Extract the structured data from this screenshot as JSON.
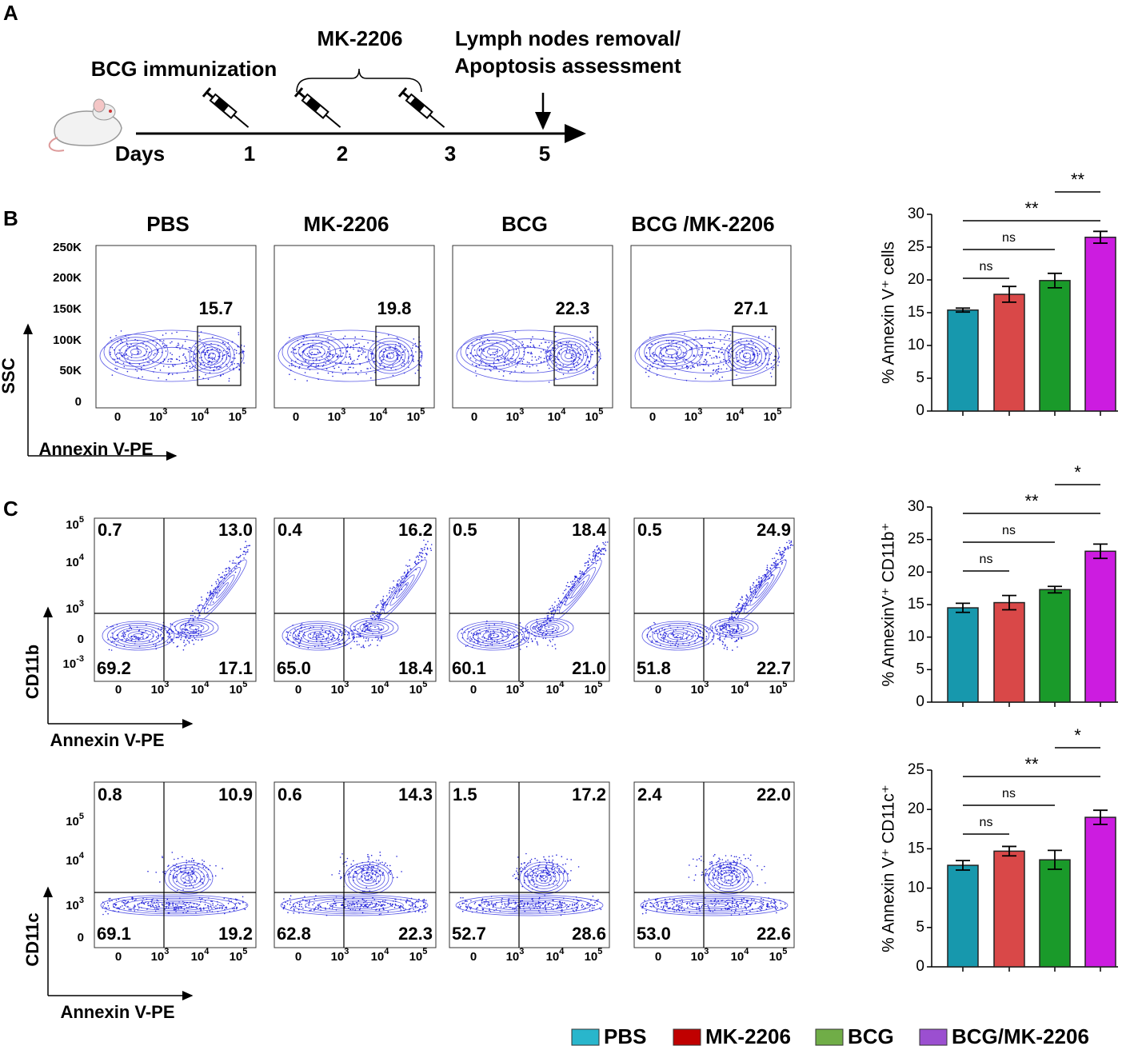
{
  "panel_labels": [
    "A",
    "B",
    "C"
  ],
  "timeline": {
    "immunization": "BCG immunization",
    "treatment": "MK-2206",
    "endpoint": [
      "Lymph nodes removal/",
      "Apoptosis assessment"
    ],
    "days_label": "Days",
    "days": [
      1,
      2,
      3,
      5
    ]
  },
  "groups": [
    "PBS",
    "MK-2206",
    "BCG",
    "BCG /MK-2206"
  ],
  "flow_b": {
    "y_label": "SSC",
    "x_label": "Annexin V-PE",
    "y_ticks": [
      "250K",
      "200K",
      "150K",
      "100K",
      "50K",
      "0"
    ],
    "x_ticks": [
      {
        "base": "0"
      },
      {
        "base": "10",
        "exp": "3"
      },
      {
        "base": "10",
        "exp": "4"
      },
      {
        "base": "10",
        "exp": "5"
      }
    ],
    "gate_values": [
      15.7,
      19.8,
      22.3,
      27.1
    ]
  },
  "flow_c": [
    {
      "y_label": "CD11b",
      "x_label": "Annexin V-PE",
      "y_ticks": [
        {
          "base": "10",
          "exp": "5"
        },
        {
          "base": "10",
          "exp": "4"
        },
        {
          "base": "10",
          "exp": "3"
        },
        {
          "base": "0"
        },
        {
          "base": "10",
          "exp": "-3"
        }
      ],
      "x_ticks": [
        {
          "base": "0"
        },
        {
          "base": "10",
          "exp": "3"
        },
        {
          "base": "10",
          "exp": "4"
        },
        {
          "base": "10",
          "exp": "5"
        }
      ],
      "quadrants": [
        [
          "0.7",
          "13.0",
          "69.2",
          "17.1"
        ],
        [
          "0.4",
          "16.2",
          "65.0",
          "18.4"
        ],
        [
          "0.5",
          "18.4",
          "60.1",
          "21.0"
        ],
        [
          "0.5",
          "24.9",
          "51.8",
          "22.7"
        ]
      ]
    },
    {
      "y_label": "CD11c",
      "x_label": "Annexin V-PE",
      "y_ticks": [
        {
          "base": "10",
          "exp": "5"
        },
        {
          "base": "10",
          "exp": "4"
        },
        {
          "base": "10",
          "exp": "3"
        },
        {
          "base": "0"
        }
      ],
      "x_ticks": [
        {
          "base": "0"
        },
        {
          "base": "10",
          "exp": "3"
        },
        {
          "base": "10",
          "exp": "4"
        },
        {
          "base": "10",
          "exp": "5"
        }
      ],
      "quadrants": [
        [
          "0.8",
          "10.9",
          "69.1",
          "19.2"
        ],
        [
          "0.6",
          "14.3",
          "62.8",
          "22.3"
        ],
        [
          "1.5",
          "17.2",
          "52.7",
          "28.6"
        ],
        [
          "2.4",
          "22.0",
          "53.0",
          "22.6"
        ]
      ]
    }
  ],
  "chart_data": [
    {
      "type": "bar",
      "y_label": "% Annexin V⁺ cells",
      "values": [
        15.4,
        17.8,
        19.9,
        26.5
      ],
      "errors": [
        0.3,
        1.2,
        1.1,
        0.9
      ],
      "colors": [
        "#1798ad",
        "#d94848",
        "#1a9a2a",
        "#cc1ce0"
      ],
      "ylim": [
        0,
        30
      ],
      "yticks": [
        0,
        5,
        10,
        15,
        20,
        25,
        30
      ],
      "annotations": [
        {
          "pair": [
            0,
            1
          ],
          "label": "ns"
        },
        {
          "pair": [
            0,
            2
          ],
          "label": "ns"
        },
        {
          "pair": [
            0,
            3
          ],
          "label": "**"
        },
        {
          "pair": [
            2,
            3
          ],
          "label": "**"
        }
      ]
    },
    {
      "type": "bar",
      "y_label": "% AnnexinV⁺ CD11b⁺",
      "values": [
        14.5,
        15.3,
        17.3,
        23.2
      ],
      "errors": [
        0.7,
        1.1,
        0.5,
        1.1
      ],
      "colors": [
        "#1798ad",
        "#d94848",
        "#1a9a2a",
        "#cc1ce0"
      ],
      "ylim": [
        0,
        30
      ],
      "yticks": [
        0,
        5,
        10,
        15,
        20,
        25,
        30
      ],
      "annotations": [
        {
          "pair": [
            0,
            1
          ],
          "label": "ns"
        },
        {
          "pair": [
            0,
            2
          ],
          "label": "ns"
        },
        {
          "pair": [
            0,
            3
          ],
          "label": "**"
        },
        {
          "pair": [
            2,
            3
          ],
          "label": "*"
        }
      ]
    },
    {
      "type": "bar",
      "y_label": "% Annexin V⁺ CD11c⁺",
      "values": [
        12.9,
        14.7,
        13.6,
        19.0
      ],
      "errors": [
        0.6,
        0.6,
        1.2,
        0.9
      ],
      "colors": [
        "#1798ad",
        "#d94848",
        "#1a9a2a",
        "#cc1ce0"
      ],
      "ylim": [
        0,
        25
      ],
      "yticks": [
        0,
        5,
        10,
        15,
        20,
        25
      ],
      "annotations": [
        {
          "pair": [
            0,
            1
          ],
          "label": "ns"
        },
        {
          "pair": [
            0,
            2
          ],
          "label": "ns"
        },
        {
          "pair": [
            0,
            3
          ],
          "label": "**"
        },
        {
          "pair": [
            2,
            3
          ],
          "label": "*"
        }
      ]
    }
  ],
  "legend": [
    {
      "name": "PBS",
      "color": "#29b6cc"
    },
    {
      "name": "MK-2206",
      "color": "#c00000"
    },
    {
      "name": "BCG",
      "color": "#70ad47"
    },
    {
      "name": "BCG/MK-2206",
      "color": "#9b4fd0"
    }
  ]
}
